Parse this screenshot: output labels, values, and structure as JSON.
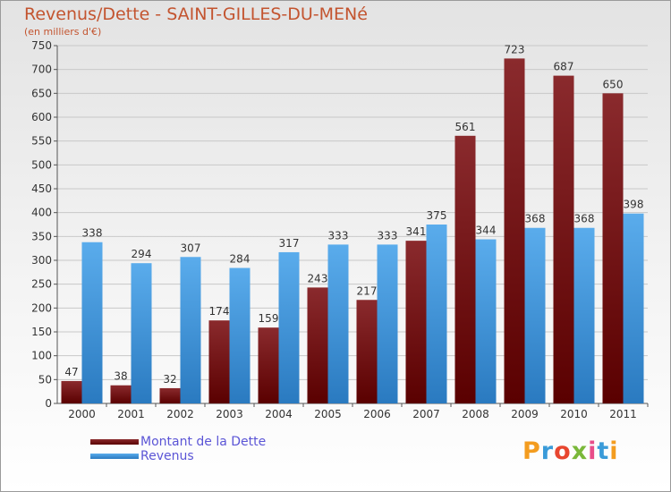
{
  "header": {
    "title": "Revenus/Dette - SAINT-GILLES-DU-MENé",
    "subtitle": "(en milliers d'€)"
  },
  "colors": {
    "dette": "#6e0f13",
    "revenus": "#3d95dc",
    "title": "#c3542f",
    "legend_text": "#5b55d6"
  },
  "legend": [
    {
      "label": "Montant de la Dette",
      "color": "#6e0f13"
    },
    {
      "label": "Revenus",
      "color": "#3d95dc"
    }
  ],
  "logo": {
    "text": "Proxiti"
  },
  "chart_data": {
    "type": "bar",
    "categories": [
      "2000",
      "2001",
      "2002",
      "2003",
      "2004",
      "2005",
      "2006",
      "2007",
      "2008",
      "2009",
      "2010",
      "2011"
    ],
    "series": [
      {
        "name": "Montant de la Dette",
        "values": [
          47,
          38,
          32,
          174,
          159,
          243,
          217,
          341,
          561,
          723,
          687,
          650
        ]
      },
      {
        "name": "Revenus",
        "values": [
          338,
          294,
          307,
          284,
          317,
          333,
          333,
          375,
          344,
          368,
          368,
          398
        ]
      }
    ],
    "title": "Revenus/Dette - SAINT-GILLES-DU-MENé",
    "subtitle": "(en milliers d'€)",
    "ylim": [
      0,
      750
    ],
    "yticks": [
      0,
      50,
      100,
      150,
      200,
      250,
      300,
      350,
      400,
      450,
      500,
      550,
      600,
      650,
      700,
      750
    ],
    "grid": true,
    "legend_position": "bottom-left"
  }
}
